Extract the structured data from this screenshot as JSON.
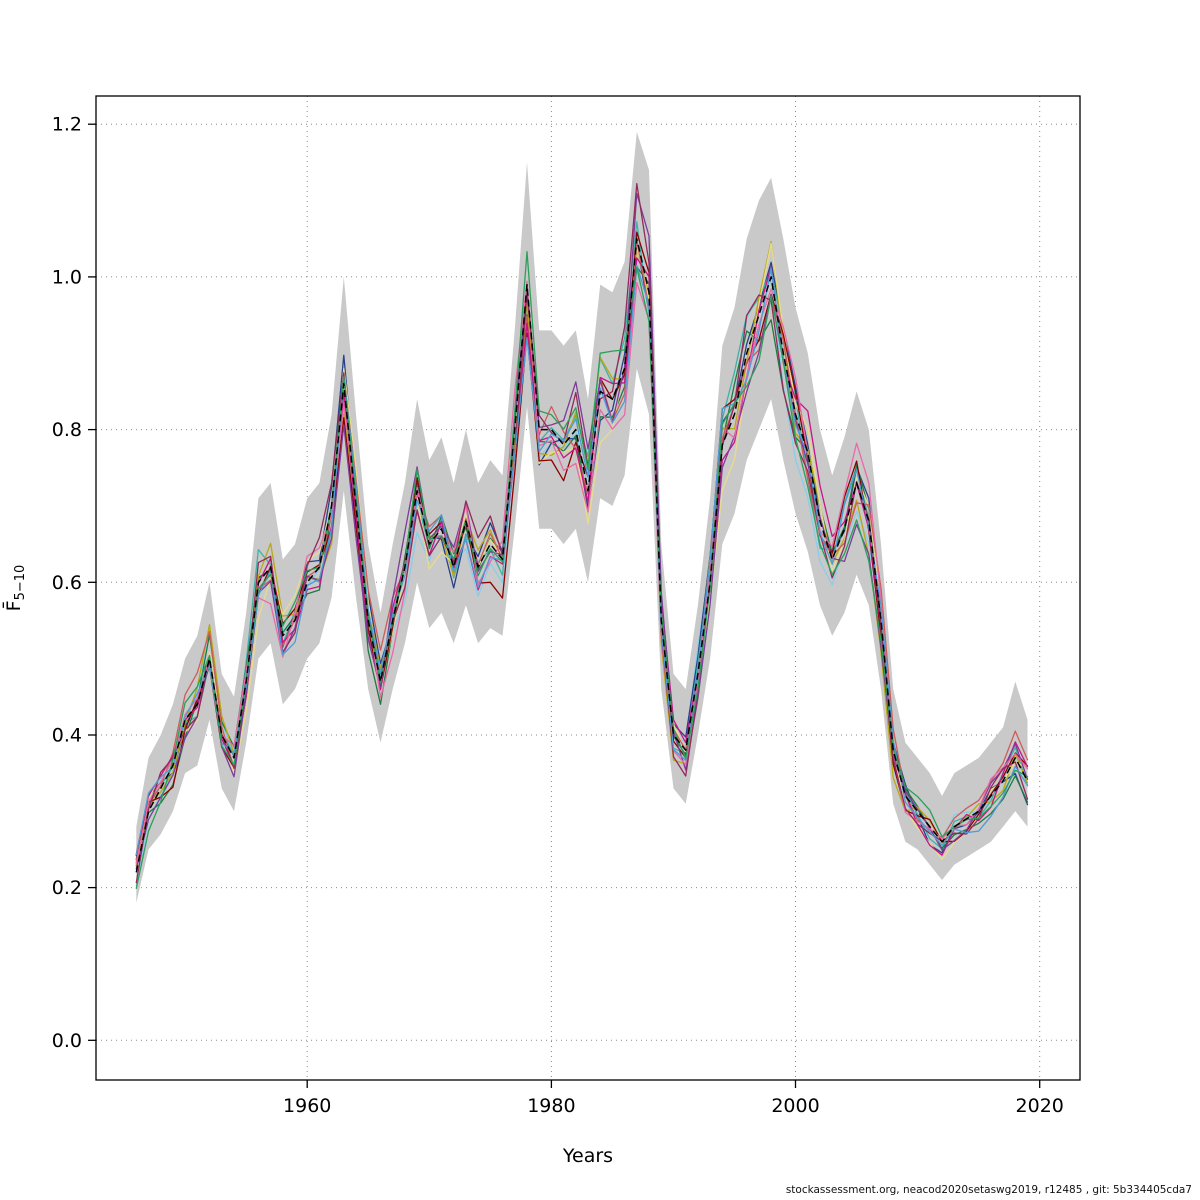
{
  "chart_data": {
    "type": "line",
    "title": "",
    "xlabel": "Years",
    "ylabel_base": "F̄",
    "ylabel_sub": "5−10",
    "footer": "stockassessment.org, neacod2020setaswg2019, r12485 , git: 5b334405cda7",
    "grid": "dotted",
    "legend": "none",
    "x_ticks": [
      1960,
      1980,
      2000,
      2020
    ],
    "y_ticks": [
      0.0,
      0.2,
      0.4,
      0.6,
      0.8,
      1.0,
      1.2
    ],
    "xlim": [
      1942.7,
      2023.3
    ],
    "ylim": [
      -0.052,
      1.237
    ],
    "years": [
      1946,
      1947,
      1948,
      1949,
      1950,
      1951,
      1952,
      1953,
      1954,
      1955,
      1956,
      1957,
      1958,
      1959,
      1960,
      1961,
      1962,
      1963,
      1964,
      1965,
      1966,
      1967,
      1968,
      1969,
      1970,
      1971,
      1972,
      1973,
      1974,
      1975,
      1976,
      1977,
      1978,
      1979,
      1980,
      1981,
      1982,
      1983,
      1984,
      1985,
      1986,
      1987,
      1988,
      1989,
      1990,
      1991,
      1992,
      1993,
      1994,
      1995,
      1996,
      1997,
      1998,
      1999,
      2000,
      2001,
      2002,
      2003,
      2004,
      2005,
      2006,
      2007,
      2008,
      2009,
      2010,
      2011,
      2012,
      2013,
      2014,
      2015,
      2016,
      2017,
      2018,
      2019
    ],
    "central": {
      "name": "base-run-mean-F",
      "color": "#000000",
      "dashed": true,
      "values": [
        0.22,
        0.3,
        0.33,
        0.36,
        0.42,
        0.44,
        0.5,
        0.4,
        0.37,
        0.47,
        0.6,
        0.62,
        0.53,
        0.55,
        0.6,
        0.62,
        0.7,
        0.86,
        0.7,
        0.55,
        0.47,
        0.55,
        0.62,
        0.72,
        0.65,
        0.67,
        0.62,
        0.68,
        0.62,
        0.65,
        0.63,
        0.8,
        0.99,
        0.8,
        0.8,
        0.78,
        0.8,
        0.72,
        0.85,
        0.84,
        0.88,
        1.05,
        0.98,
        0.55,
        0.4,
        0.38,
        0.48,
        0.6,
        0.78,
        0.82,
        0.9,
        0.95,
        1.0,
        0.9,
        0.82,
        0.77,
        0.68,
        0.63,
        0.67,
        0.73,
        0.68,
        0.55,
        0.38,
        0.32,
        0.3,
        0.28,
        0.26,
        0.28,
        0.29,
        0.3,
        0.32,
        0.34,
        0.37,
        0.34
      ]
    },
    "band": {
      "name": "confidence-band",
      "color": "#c9c9c9",
      "lower": [
        0.18,
        0.25,
        0.27,
        0.3,
        0.35,
        0.36,
        0.42,
        0.33,
        0.3,
        0.39,
        0.5,
        0.52,
        0.44,
        0.46,
        0.5,
        0.52,
        0.58,
        0.72,
        0.58,
        0.46,
        0.39,
        0.46,
        0.52,
        0.6,
        0.54,
        0.56,
        0.52,
        0.57,
        0.52,
        0.54,
        0.53,
        0.67,
        0.83,
        0.67,
        0.67,
        0.65,
        0.67,
        0.6,
        0.71,
        0.7,
        0.74,
        0.88,
        0.82,
        0.46,
        0.33,
        0.31,
        0.4,
        0.5,
        0.65,
        0.69,
        0.76,
        0.8,
        0.84,
        0.76,
        0.69,
        0.64,
        0.57,
        0.53,
        0.56,
        0.61,
        0.57,
        0.46,
        0.31,
        0.26,
        0.25,
        0.23,
        0.21,
        0.23,
        0.24,
        0.25,
        0.26,
        0.28,
        0.3,
        0.28
      ],
      "upper": [
        0.28,
        0.37,
        0.4,
        0.44,
        0.5,
        0.53,
        0.6,
        0.48,
        0.45,
        0.56,
        0.71,
        0.73,
        0.63,
        0.65,
        0.71,
        0.73,
        0.82,
        1.0,
        0.82,
        0.65,
        0.56,
        0.65,
        0.73,
        0.84,
        0.76,
        0.79,
        0.73,
        0.8,
        0.73,
        0.76,
        0.74,
        0.93,
        1.15,
        0.93,
        0.93,
        0.91,
        0.93,
        0.84,
        0.99,
        0.98,
        1.02,
        1.19,
        1.14,
        0.65,
        0.48,
        0.46,
        0.57,
        0.71,
        0.91,
        0.96,
        1.05,
        1.1,
        1.13,
        1.05,
        0.96,
        0.9,
        0.8,
        0.74,
        0.79,
        0.85,
        0.8,
        0.65,
        0.46,
        0.39,
        0.37,
        0.35,
        0.32,
        0.35,
        0.36,
        0.37,
        0.39,
        0.41,
        0.47,
        0.42
      ]
    },
    "ensemble_colors": [
      "#87ceeb",
      "#27408b",
      "#3cb3a6",
      "#1f7a3f",
      "#b8a912",
      "#e8dc8c",
      "#8b0000",
      "#cd5c5c",
      "#c71585",
      "#7d3c98",
      "#e86aa8",
      "#922b5a",
      "#4f9bd4",
      "#2aa05a"
    ],
    "ensemble_spread": 0.42
  }
}
